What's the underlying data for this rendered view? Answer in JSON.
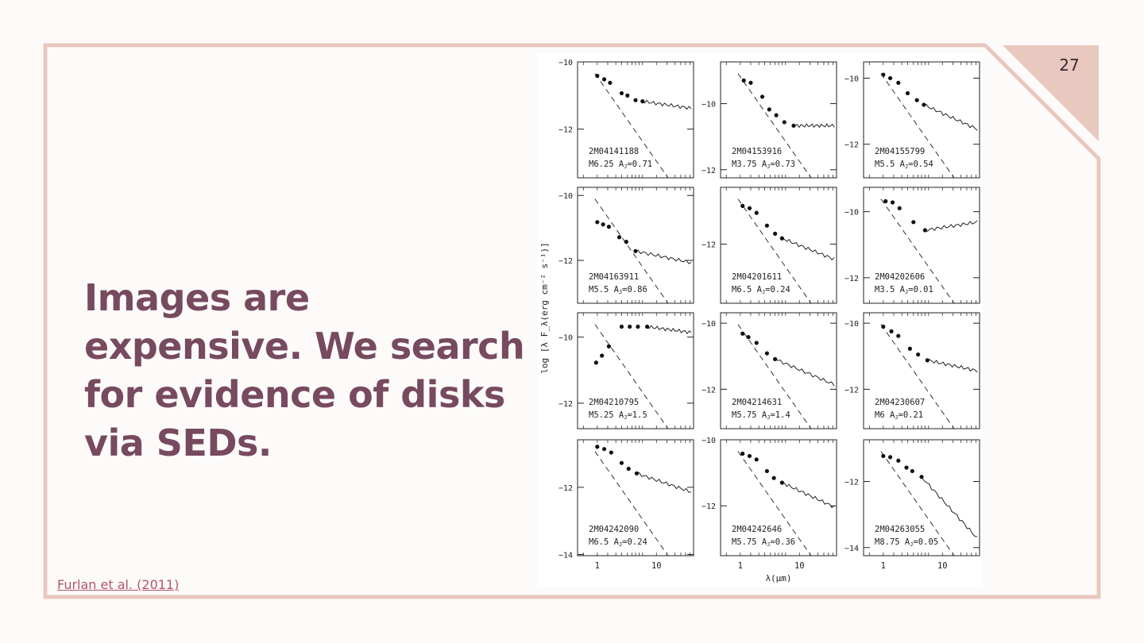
{
  "slide": {
    "number": "27",
    "headline": "Images are expensive. We search for evidence of disks via SEDs.",
    "citation": "Furlan et al. (2011)",
    "colors": {
      "accent": "#e9c8c0",
      "title": "#774a60",
      "link": "#b2556a",
      "background": "#fdfbf9"
    }
  },
  "figure": {
    "ylabel": "log [λ F_λ(erg cm⁻² s⁻¹)]",
    "xlabel": "λ(μm)",
    "panels": [
      {
        "id": "2M04141188",
        "spt": "M6.25",
        "aj": "0.71"
      },
      {
        "id": "2M04153916",
        "spt": "M3.75",
        "aj": "0.73"
      },
      {
        "id": "2M04155799",
        "spt": "M5.5",
        "aj": "0.54"
      },
      {
        "id": "2M04163911",
        "spt": "M5.5",
        "aj": "0.86"
      },
      {
        "id": "2M04201611",
        "spt": "M6.5",
        "aj": "0.24"
      },
      {
        "id": "2M04202606",
        "spt": "M3.5",
        "aj": "0.01"
      },
      {
        "id": "2M04210795",
        "spt": "M5.25",
        "aj": "1.5"
      },
      {
        "id": "2M04214631",
        "spt": "M5.75",
        "aj": "1.4"
      },
      {
        "id": "2M04230607",
        "spt": "M6",
        "aj": "0.21"
      },
      {
        "id": "2M04242090",
        "spt": "M6.5",
        "aj": "0.24"
      },
      {
        "id": "2M04242646",
        "spt": "M5.75",
        "aj": "0.36"
      },
      {
        "id": "2M04263055",
        "spt": "M8.75",
        "aj": "0.05"
      }
    ],
    "ytick_labels": [
      [
        "-10",
        "-12"
      ],
      [
        "-10",
        "-12"
      ],
      [
        "-10",
        "-12"
      ],
      [
        "-10",
        "-12"
      ],
      [
        "-12"
      ],
      [
        "-10",
        "-12"
      ],
      [
        "-10",
        "-12"
      ],
      [
        "-10",
        "-12"
      ],
      [
        "-10",
        "-12"
      ],
      [
        "-12",
        "-14"
      ],
      [
        "-10",
        "-12"
      ],
      [
        "-12",
        "-14"
      ]
    ],
    "xtick_labels": [
      "1",
      "10"
    ]
  }
}
